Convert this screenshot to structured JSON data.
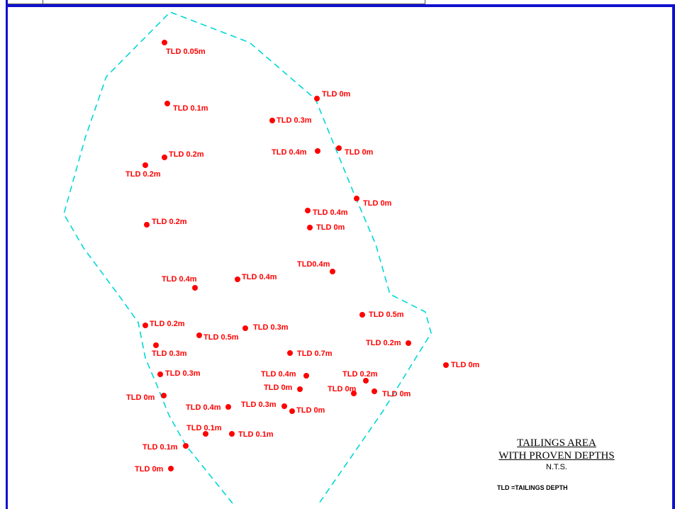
{
  "title_line1": "TAILINGS AREA",
  "title_line2": "WITH PROVEN DEPTHS",
  "scale": "N.T.S.",
  "legend": "TLD =TAILINGS DEPTH",
  "colors": {
    "boundary": "#00d8d8",
    "points": "#ff0000",
    "frame": "#1010d0"
  },
  "boundary_style": "dashed",
  "point_labels": [
    "TLD 0.05m",
    "TLD 0.1m",
    "TLD 0.2m",
    "TLD 0.2m",
    "TLD 0.2m",
    "TLD 0m",
    "TLD 0.3m",
    "TLD 0.4m",
    "TLD 0m",
    "TLD 0m",
    "TLD 0.4m",
    "TLD 0m",
    "TLD0.4m",
    "TLD 0.4m",
    "TLD 0.4m",
    "TLD 0.5m",
    "TLD 0.2m",
    "TLD 0.3m",
    "TLD 0.5m",
    "TLD 0.2m",
    "TLD 0.3m",
    "TLD 0.7m",
    "TLD 0m",
    "TLD 0.3m",
    "TLD 0.4m",
    "TLD 0.2m",
    "TLD 0m",
    "TLD 0m",
    "TLD 0m",
    "TLD 0m",
    "TLD 0.4m",
    "TLD 0.3m",
    "TLD 0m",
    "TLD 0.1m",
    "TLD 0.1m",
    "TLD 0.1m",
    "TLD 0m"
  ]
}
